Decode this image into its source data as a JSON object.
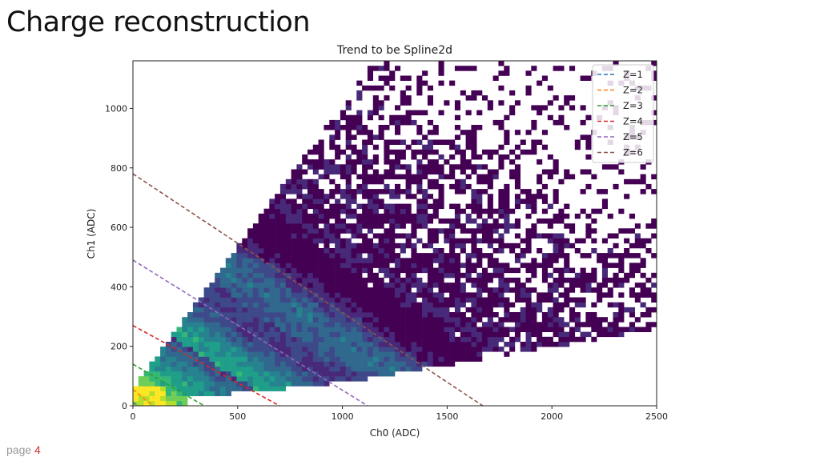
{
  "slide": {
    "title": "Charge reconstruction",
    "page_label": "page",
    "page_number": "4"
  },
  "chart_data": {
    "type": "heatmap",
    "title": "Trend to be Spline2d",
    "xlabel": "Ch0 (ADC)",
    "ylabel": "Ch1 (ADC)",
    "xlim": [
      0,
      2500
    ],
    "ylim": [
      0,
      1160
    ],
    "xticks": [
      0,
      500,
      1000,
      1500,
      2000,
      2500
    ],
    "yticks": [
      0,
      200,
      400,
      600,
      800,
      1000
    ],
    "colormap": "viridis",
    "grid": false,
    "legend_position": "top-right",
    "description_of_density": "2D histogram of Ch1 vs Ch0 counts; high density near origin, diagonal bands between Z lines, sparse cloud at high Ch0/Ch1",
    "lines": [
      {
        "name": "Z=1",
        "color": "#1f77b4",
        "x": [
          0,
          30
        ],
        "y": [
          10,
          0
        ]
      },
      {
        "name": "Z=2",
        "color": "#ff7f0e",
        "x": [
          0,
          95
        ],
        "y": [
          55,
          0
        ]
      },
      {
        "name": "Z=3",
        "color": "#2ca02c",
        "x": [
          0,
          340
        ],
        "y": [
          140,
          0
        ]
      },
      {
        "name": "Z=4",
        "color": "#d62728",
        "x": [
          0,
          700
        ],
        "y": [
          270,
          0
        ]
      },
      {
        "name": "Z=5",
        "color": "#9467bd",
        "x": [
          0,
          1120
        ],
        "y": [
          490,
          0
        ]
      },
      {
        "name": "Z=6",
        "color": "#8c564b",
        "x": [
          0,
          1670
        ],
        "y": [
          780,
          0
        ]
      }
    ]
  }
}
